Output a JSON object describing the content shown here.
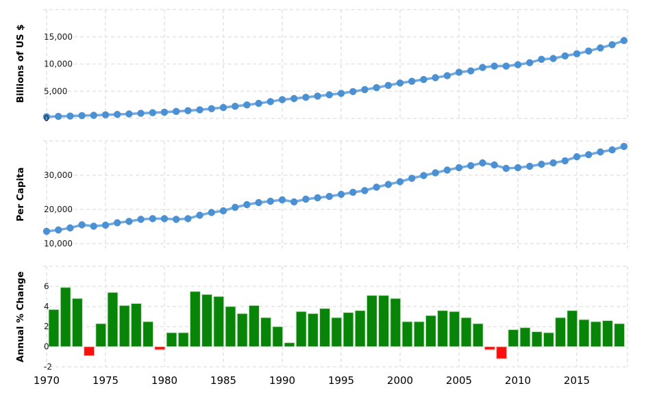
{
  "colors": {
    "grid": "#e8e8e8",
    "line_blue": "#74a9dd",
    "point_blue": "#4a90d2",
    "bar_green": "#088408",
    "bar_green_border": "#cfe7cc",
    "bar_red": "#f9100d",
    "bar_red_border": "#ffb9b2",
    "text": "#000000"
  },
  "x_axis": {
    "tick_years": [
      1970,
      1975,
      1980,
      1985,
      1990,
      1995,
      2000,
      2005,
      2010,
      2015
    ],
    "labels": [
      "1970",
      "1975",
      "1980",
      "1985",
      "1990",
      "1995",
      "2000",
      "2005",
      "2010",
      "2015"
    ]
  },
  "chart_data": [
    {
      "type": "line",
      "title": "",
      "ylabel": "Billions of US $",
      "xlabel": "",
      "grid": true,
      "legend": false,
      "ylim": [
        0,
        20000
      ],
      "yticks": [
        {
          "value": 0,
          "label": "0"
        },
        {
          "value": 5000,
          "label": "5,000"
        },
        {
          "value": 10000,
          "label": "10,000"
        },
        {
          "value": 15000,
          "label": "15,000"
        },
        {
          "value": 20000,
          "label": ""
        }
      ],
      "line_color": "#74a9dd",
      "point_color": "#4a90d2",
      "x": [
        1970,
        1971,
        1972,
        1973,
        1974,
        1975,
        1976,
        1977,
        1978,
        1979,
        1980,
        1981,
        1982,
        1983,
        1984,
        1985,
        1986,
        1987,
        1988,
        1989,
        1990,
        1991,
        1992,
        1993,
        1994,
        1995,
        1996,
        1997,
        1998,
        1999,
        2000,
        2001,
        2002,
        2003,
        2004,
        2005,
        2006,
        2007,
        2008,
        2009,
        2010,
        2011,
        2012,
        2013,
        2014,
        2015,
        2016,
        2017,
        2018,
        2019
      ],
      "values": [
        300,
        360,
        430,
        510,
        570,
        650,
        730,
        820,
        930,
        1040,
        1150,
        1280,
        1420,
        1590,
        1780,
        2000,
        2230,
        2480,
        2760,
        3090,
        3450,
        3650,
        3870,
        4100,
        4340,
        4600,
        4930,
        5280,
        5650,
        6060,
        6500,
        6820,
        7150,
        7490,
        7850,
        8480,
        8730,
        9360,
        9610,
        9610,
        9860,
        10240,
        10860,
        11000,
        11490,
        11870,
        12380,
        12950,
        13550,
        14300
      ]
    },
    {
      "type": "line",
      "title": "",
      "ylabel": "Per Capita",
      "xlabel": "",
      "grid": true,
      "legend": false,
      "ylim": [
        8600,
        40000
      ],
      "yticks": [
        {
          "value": 10000,
          "label": "10,000"
        },
        {
          "value": 20000,
          "label": "20,000"
        },
        {
          "value": 30000,
          "label": "30,000"
        },
        {
          "value": 40000,
          "label": ""
        }
      ],
      "line_color": "#74a9dd",
      "point_color": "#4a90d2",
      "x": [
        1970,
        1971,
        1972,
        1973,
        1974,
        1975,
        1976,
        1977,
        1978,
        1979,
        1980,
        1981,
        1982,
        1983,
        1984,
        1985,
        1986,
        1987,
        1988,
        1989,
        1990,
        1991,
        1992,
        1993,
        1994,
        1995,
        1996,
        1997,
        1998,
        1999,
        2000,
        2001,
        2002,
        2003,
        2004,
        2005,
        2006,
        2007,
        2008,
        2009,
        2010,
        2011,
        2012,
        2013,
        2014,
        2015,
        2016,
        2017,
        2018,
        2019
      ],
      "values": [
        13600,
        14000,
        14600,
        15500,
        15100,
        15400,
        16100,
        16500,
        17100,
        17300,
        17300,
        17100,
        17300,
        18300,
        19100,
        19600,
        20600,
        21400,
        22000,
        22400,
        22800,
        22200,
        23000,
        23400,
        23800,
        24400,
        25000,
        25500,
        26500,
        27300,
        28100,
        29100,
        29900,
        30700,
        31500,
        32200,
        32800,
        33600,
        33000,
        32000,
        32200,
        32600,
        33200,
        33600,
        34200,
        35400,
        36000,
        36800,
        37400,
        38400
      ]
    },
    {
      "type": "bar",
      "title": "",
      "ylabel": "Annual % Change",
      "xlabel": "",
      "grid": true,
      "legend": false,
      "ylim": [
        -2,
        8
      ],
      "yticks": [
        {
          "value": -2,
          "label": "-2"
        },
        {
          "value": 0,
          "label": "0"
        },
        {
          "value": 2,
          "label": "2"
        },
        {
          "value": 4,
          "label": "4"
        },
        {
          "value": 6,
          "label": "6"
        },
        {
          "value": 8,
          "label": ""
        }
      ],
      "bar_color_positive": "#088408",
      "bar_border_positive": "#cfe7cc",
      "bar_color_negative": "#f9100d",
      "bar_border_negative": "#ffb9b2",
      "x": [
        1971,
        1972,
        1973,
        1974,
        1975,
        1976,
        1977,
        1978,
        1979,
        1980,
        1981,
        1982,
        1983,
        1984,
        1985,
        1986,
        1987,
        1988,
        1989,
        1990,
        1991,
        1992,
        1993,
        1994,
        1995,
        1996,
        1997,
        1998,
        1999,
        2000,
        2001,
        2002,
        2003,
        2004,
        2005,
        2006,
        2007,
        2008,
        2009,
        2010,
        2011,
        2012,
        2013,
        2014,
        2015,
        2016,
        2017,
        2018,
        2019
      ],
      "values": [
        3.7,
        5.9,
        4.8,
        -0.9,
        2.3,
        5.4,
        4.1,
        4.3,
        2.5,
        -0.3,
        1.4,
        1.4,
        5.5,
        5.2,
        5.0,
        4.0,
        3.3,
        4.1,
        2.9,
        2.0,
        0.4,
        3.5,
        3.3,
        3.8,
        2.9,
        3.4,
        3.6,
        5.1,
        5.1,
        4.8,
        2.5,
        2.5,
        3.1,
        3.6,
        3.5,
        2.9,
        2.3,
        -0.3,
        -1.2,
        1.7,
        1.9,
        1.5,
        1.4,
        2.9,
        3.6,
        2.7,
        2.5,
        2.6,
        2.3
      ]
    }
  ]
}
